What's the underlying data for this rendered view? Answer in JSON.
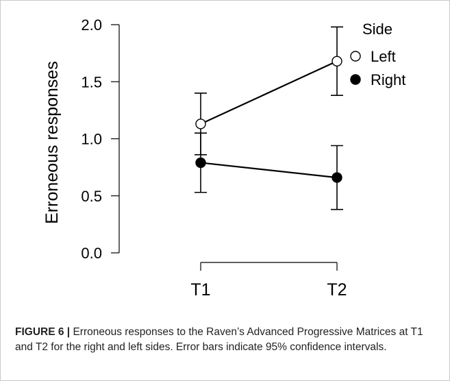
{
  "figure": {
    "label": "FIGURE 6 |",
    "caption": " Erroneous responses to the Raven’s Advanced Progressive Matrices at T1 and T2 for the right and left sides. Error bars indicate 95% confidence intervals."
  },
  "chart_data": {
    "type": "line",
    "title": "",
    "xlabel": "",
    "ylabel": "Erroneous responses",
    "categories": [
      "T1",
      "T2"
    ],
    "ylim": [
      0.0,
      2.0
    ],
    "yticks": [
      "0.0",
      "0.5",
      "1.0",
      "1.5",
      "2.0"
    ],
    "grid": false,
    "legend": {
      "title": "Side",
      "position": "top-right"
    },
    "series": [
      {
        "name": "Left",
        "marker": "open-circle",
        "color": "#000000",
        "values": [
          1.13,
          1.68
        ],
        "ci_low": [
          0.86,
          1.38
        ],
        "ci_high": [
          1.4,
          1.98
        ]
      },
      {
        "name": "Right",
        "marker": "filled-circle",
        "color": "#000000",
        "values": [
          0.79,
          0.66
        ],
        "ci_low": [
          0.53,
          0.38
        ],
        "ci_high": [
          1.05,
          0.94
        ]
      }
    ]
  }
}
